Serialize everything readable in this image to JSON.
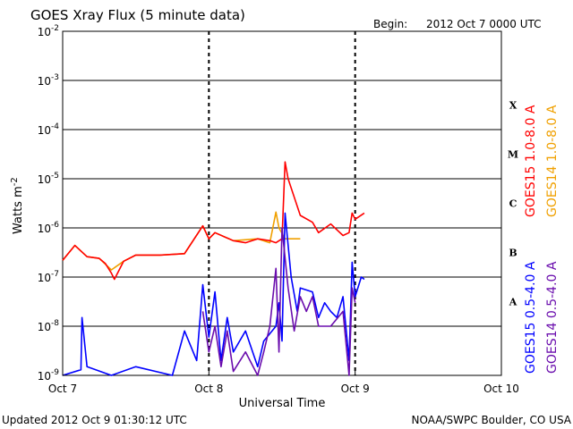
{
  "header": {
    "title": "GOES Xray Flux (5 minute data)",
    "begin_label": "Begin:",
    "begin_value": "2012 Oct 7 0000 UTC"
  },
  "footer": {
    "updated": "Updated 2012 Oct  9 01:30:12 UTC",
    "credit": "NOAA/SWPC Boulder, CO USA"
  },
  "chart_data": {
    "type": "line",
    "title": "GOES Xray Flux (5 minute data)",
    "xlabel": "Universal Time",
    "ylabel": "Watts m-2",
    "ylabel_base": "Watts m",
    "ylabel_exp": "-2",
    "y_scale": "log",
    "ylim": [
      1e-09,
      0.01
    ],
    "xlim": [
      "2012-10-07T00:00",
      "2012-10-10T00:00"
    ],
    "x_ticks": [
      "Oct 7",
      "Oct 8",
      "Oct 9",
      "Oct 10"
    ],
    "y_ticks": [
      {
        "base": "10",
        "exp": "-9"
      },
      {
        "base": "10",
        "exp": "-8"
      },
      {
        "base": "10",
        "exp": "-7"
      },
      {
        "base": "10",
        "exp": "-6"
      },
      {
        "base": "10",
        "exp": "-5"
      },
      {
        "base": "10",
        "exp": "-4"
      },
      {
        "base": "10",
        "exp": "-3"
      },
      {
        "base": "10",
        "exp": "-2"
      }
    ],
    "flare_classes": [
      {
        "label": "A",
        "exp": -7.5
      },
      {
        "label": "B",
        "exp": -6.5
      },
      {
        "label": "C",
        "exp": -5.5
      },
      {
        "label": "M",
        "exp": -4.5
      },
      {
        "label": "X",
        "exp": -3.5
      }
    ],
    "grid": true,
    "series": [
      {
        "name": "GOES14 1.0-8.0 A",
        "color": "#f0a000",
        "x": [
          "10-07 00:00",
          "10-07 02:00",
          "10-07 04:00",
          "10-07 06:00",
          "10-07 08:00",
          "10-07 10:00",
          "10-07 12:00",
          "10-07 16:00",
          "10-07 20:00",
          "10-07 23:00",
          "10-08 00:00",
          "10-08 01:00",
          "10-08 04:00",
          "10-08 08:00",
          "10-08 10:00",
          "10-08 11:00",
          "10-08 11:30",
          "10-08 12:30",
          "10-08 15:00"
        ],
        "y": [
          2.2e-07,
          4.4e-07,
          2.6e-07,
          2.4e-07,
          1.4e-07,
          2.1e-07,
          2.8e-07,
          2.8e-07,
          3e-07,
          1.1e-06,
          6e-07,
          8e-07,
          5.5e-07,
          6e-07,
          5e-07,
          2.1e-06,
          1e-06,
          6e-07,
          6e-07
        ]
      },
      {
        "name": "GOES15 1.0-8.0 A",
        "color": "#ff0000",
        "x": [
          "10-07 00:00",
          "10-07 02:00",
          "10-07 04:00",
          "10-07 06:00",
          "10-07 07:00",
          "10-07 08:00",
          "10-07 08:30",
          "10-07 10:00",
          "10-07 12:00",
          "10-07 16:00",
          "10-07 20:00",
          "10-07 23:00",
          "10-08 00:00",
          "10-08 01:00",
          "10-08 04:00",
          "10-08 06:00",
          "10-08 08:00",
          "10-08 10:00",
          "10-08 11:00",
          "10-08 12:00",
          "10-08 12:30",
          "10-08 13:00",
          "10-08 15:00",
          "10-08 17:00",
          "10-08 18:00",
          "10-08 20:00",
          "10-08 22:00",
          "10-08 23:00",
          "10-08 23:30",
          "10-09 00:00",
          "10-09 01:30"
        ],
        "y": [
          2.2e-07,
          4.4e-07,
          2.6e-07,
          2.4e-07,
          1.9e-07,
          1.2e-07,
          9e-08,
          2.1e-07,
          2.8e-07,
          2.8e-07,
          3e-07,
          1.1e-06,
          6e-07,
          8e-07,
          5.5e-07,
          5e-07,
          6e-07,
          5.5e-07,
          5e-07,
          6e-07,
          2.2e-05,
          1e-05,
          1.8e-06,
          1.3e-06,
          8e-07,
          1.2e-06,
          7e-07,
          8e-07,
          2e-06,
          1.5e-06,
          2e-06
        ]
      },
      {
        "name": "GOES15 0.5-4.0 A",
        "color": "#0000ff",
        "x": [
          "10-07 00:00",
          "10-07 03:00",
          "10-07 03:10",
          "10-07 04:00",
          "10-07 08:00",
          "10-07 12:00",
          "10-07 18:00",
          "10-07 20:00",
          "10-07 22:00",
          "10-07 23:00",
          "10-08 00:00",
          "10-08 01:00",
          "10-08 02:00",
          "10-08 03:00",
          "10-08 04:00",
          "10-08 06:00",
          "10-08 08:00",
          "10-08 09:00",
          "10-08 11:00",
          "10-08 11:30",
          "10-08 12:00",
          "10-08 12:30",
          "10-08 13:30",
          "10-08 14:30",
          "10-08 15:00",
          "10-08 17:00",
          "10-08 18:00",
          "10-08 19:00",
          "10-08 20:00",
          "10-08 21:00",
          "10-08 22:00",
          "10-08 23:00",
          "10-08 23:30",
          "10-09 00:00",
          "10-09 01:00",
          "10-09 01:30"
        ],
        "y": [
          1e-09,
          1.3e-09,
          1.5e-08,
          1.5e-09,
          1e-09,
          1.5e-09,
          1e-09,
          8e-09,
          2e-09,
          7e-08,
          6e-09,
          5e-08,
          2e-09,
          1.5e-08,
          3e-09,
          8e-09,
          1.5e-09,
          5e-09,
          1e-08,
          3e-08,
          5e-09,
          2e-06,
          1e-07,
          2e-08,
          6e-08,
          5e-08,
          1.5e-08,
          3e-08,
          2e-08,
          1.5e-08,
          4e-08,
          2e-09,
          2e-07,
          4e-08,
          1e-07,
          9e-08
        ]
      },
      {
        "name": "GOES14 0.5-4.0 A",
        "color": "#6a0dad",
        "x": [
          "10-07 23:00",
          "10-08 00:00",
          "10-08 01:00",
          "10-08 02:00",
          "10-08 03:00",
          "10-08 04:00",
          "10-08 06:00",
          "10-08 08:00",
          "10-08 09:00",
          "10-08 10:00",
          "10-08 11:00",
          "10-08 11:30",
          "10-08 12:00",
          "10-08 13:00",
          "10-08 14:00",
          "10-08 15:00",
          "10-08 16:00",
          "10-08 17:00",
          "10-08 18:00",
          "10-08 20:00",
          "10-08 22:00",
          "10-08 23:00",
          "10-08 23:30",
          "10-09 00:00"
        ],
        "y": [
          2e-08,
          3e-09,
          1e-08,
          1.5e-09,
          8e-09,
          1.2e-09,
          3e-09,
          1e-09,
          3e-09,
          1e-08,
          1.5e-07,
          3e-09,
          1e-06,
          6e-08,
          8e-09,
          4e-08,
          2e-08,
          4e-08,
          1e-08,
          1e-08,
          2e-08,
          1e-09,
          6e-08,
          3e-08
        ]
      }
    ]
  }
}
